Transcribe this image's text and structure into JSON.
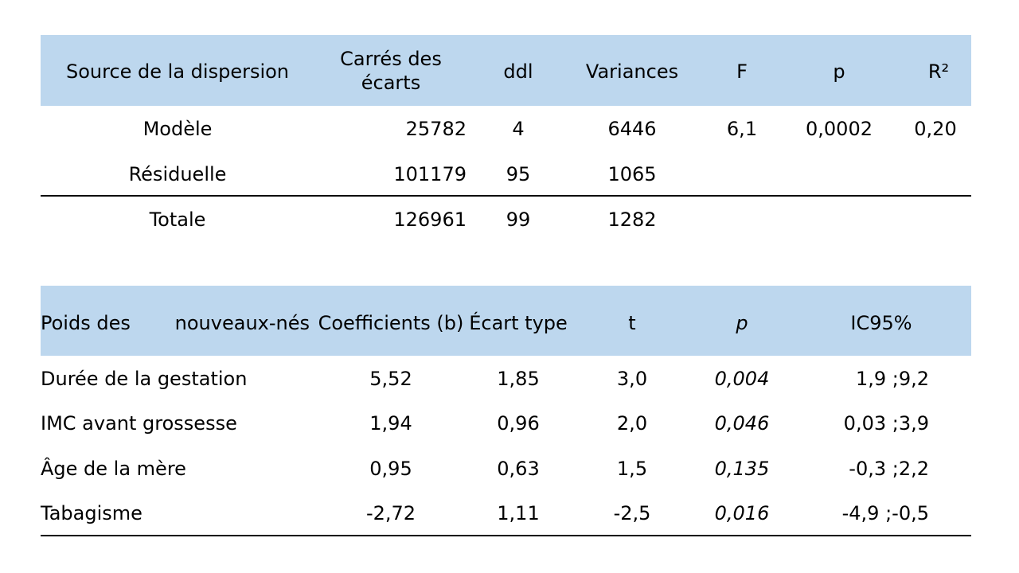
{
  "anova": {
    "headers": {
      "source": "Source de la dispersion",
      "ss_line1": "Carrés des",
      "ss_line2": "écarts",
      "df": "ddl",
      "variances": "Variances",
      "f": "F",
      "p": "p",
      "r2": "R²"
    },
    "rows": [
      {
        "source": "Modèle",
        "ss": "25782",
        "df": "4",
        "variance": "6446",
        "f": "6,1",
        "p": "0,0002",
        "r2": "0,20"
      },
      {
        "source": "Résiduelle",
        "ss": "101179",
        "df": "95",
        "variance": "1065"
      },
      {
        "source": "Totale",
        "ss": "126961",
        "df": "99",
        "variance": "1282"
      }
    ]
  },
  "regression": {
    "headers": {
      "var_part1": "Poids des",
      "var_part2": "nouveaux-nés",
      "coef": "Coefficients (b)",
      "se": "Écart type",
      "t": "t",
      "p": "p",
      "ci": "IC95%"
    },
    "rows": [
      {
        "label": "Durée de la gestation",
        "coef": "5,52",
        "se": "1,85",
        "t": "3,0",
        "p": "0,004",
        "ci": "1,9 ;9,2"
      },
      {
        "label": "IMC avant grossesse",
        "coef": "1,94",
        "se": "0,96",
        "t": "2,0",
        "p": "0,046",
        "ci": "0,03 ;3,9"
      },
      {
        "label": "Âge de la mère",
        "coef": "0,95",
        "se": "0,63",
        "t": "1,5",
        "p": "0,135",
        "ci": "-0,3 ;2,2"
      },
      {
        "label": "Tabagisme",
        "coef": "-2,72",
        "se": "1,11",
        "t": "-2,5",
        "p": "0,016",
        "ci": "-4,9 ;-0,5"
      }
    ]
  },
  "colors": {
    "header_fill": "#bdd7ee",
    "text": "#000000"
  }
}
